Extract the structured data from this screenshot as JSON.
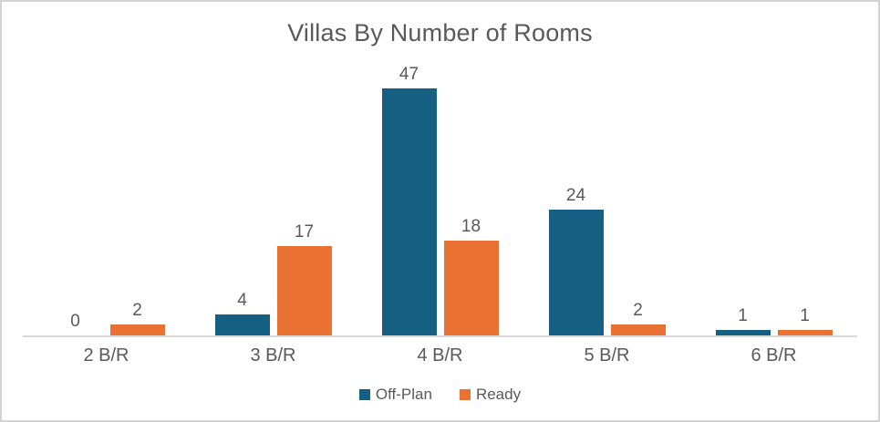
{
  "window": {
    "background": "#ffffff",
    "border_color": "#d3d3d3"
  },
  "chart_data": {
    "type": "bar",
    "title": "Villas By Number of Rooms",
    "categories": [
      "2 B/R",
      "3 B/R",
      "4 B/R",
      "5 B/R",
      "6 B/R"
    ],
    "series": [
      {
        "name": "Off-Plan",
        "color": "#156082",
        "values": [
          0,
          4,
          47,
          24,
          1
        ]
      },
      {
        "name": "Ready",
        "color": "#E97132",
        "values": [
          2,
          17,
          18,
          2,
          1
        ]
      }
    ],
    "xlabel": "",
    "ylabel": "",
    "ylim": [
      0,
      50
    ],
    "grid": false,
    "y_axis_visible": false,
    "data_labels": true,
    "legend_position": "bottom",
    "axis_line_color": "#d9d9d9",
    "text_color": "#595959"
  }
}
